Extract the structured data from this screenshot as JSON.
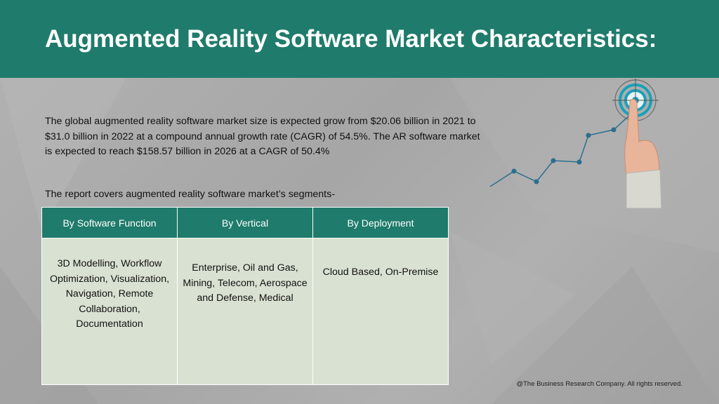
{
  "header": {
    "title": "Augmented Reality Software Market Characteristics:"
  },
  "body": {
    "paragraph": "The global augmented reality software market size is expected grow from $20.06 billion in 2021 to $31.0 billion in 2022 at a compound annual growth rate (CAGR) of 54.5%. The AR software market is expected to reach $158.57 billion in 2026 at a CAGR of 50.4%",
    "segments_intro": "The report covers augmented reality software market’s segments-"
  },
  "segments_table": {
    "headers": [
      "By Software Function",
      "By Vertical",
      "By Deployment"
    ],
    "cells": [
      "3D Modelling, Workflow Optimization, Visualization, Navigation, Remote Collaboration, Documentation",
      "Enterprise, Oil and Gas, Mining, Telecom, Aerospace and Defense, Medical",
      "Cloud Based, On-Premise"
    ]
  },
  "graphic": {
    "icon": "target-touch-growth-icon",
    "line_color": "#2a6f8f",
    "target_color": "#1aa0b8"
  },
  "footer": {
    "copyright": "@The Business Research Company. All rights reserved."
  },
  "colors": {
    "brand": "#1f7b6b",
    "table_cell_bg": "#d9e2d2",
    "background": "#a9a9a9"
  }
}
